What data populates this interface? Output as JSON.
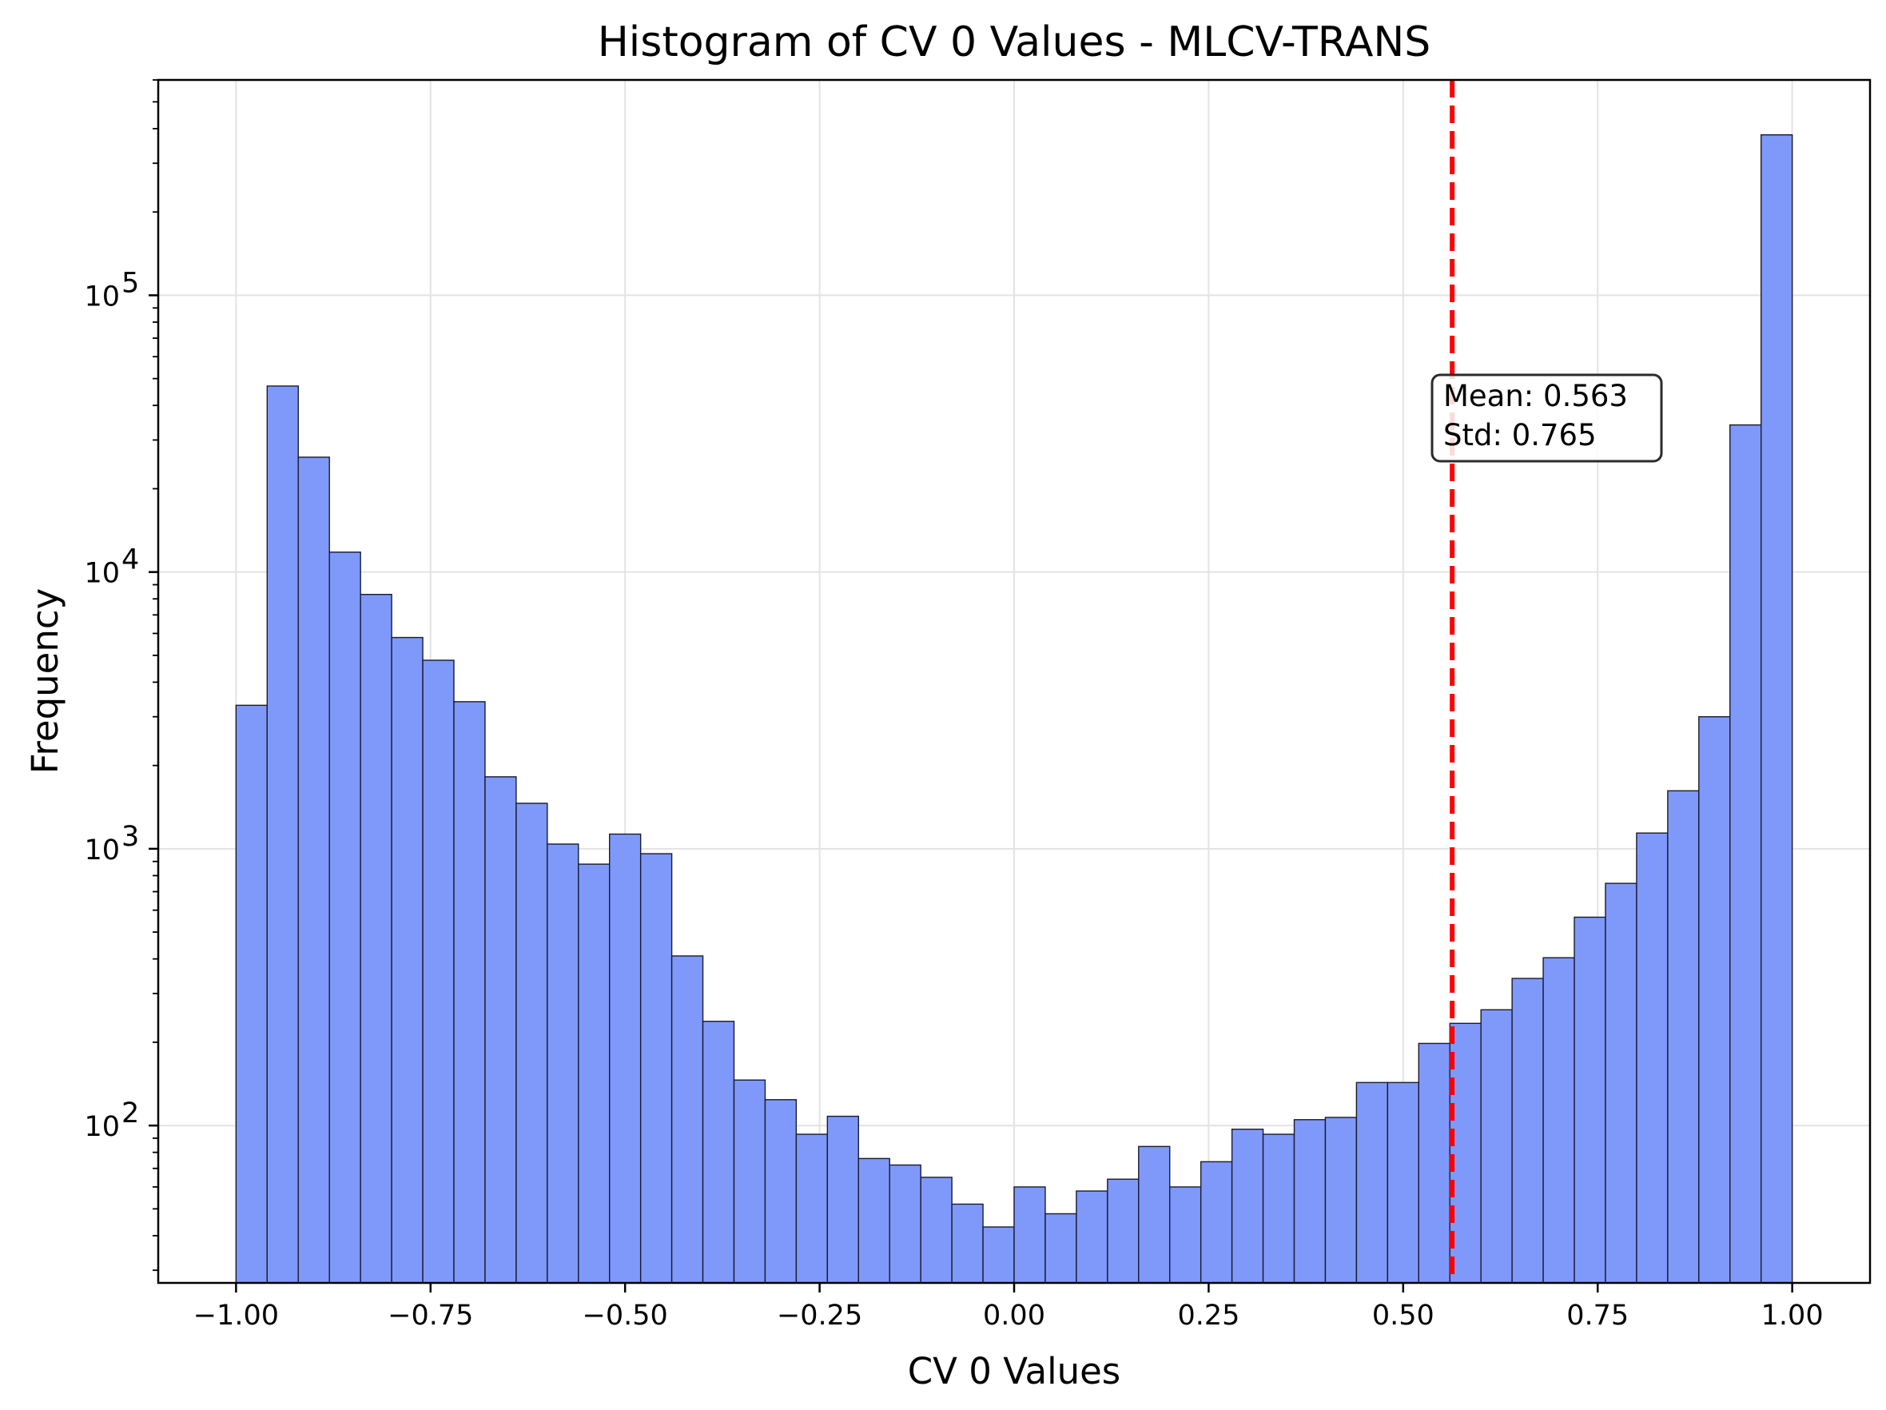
{
  "chart_data": {
    "type": "bar",
    "title": "Histogram of CV 0 Values - MLCV-TRANS",
    "xlabel": "CV 0 Values",
    "ylabel": "Frequency",
    "yscale": "log",
    "xlim": [
      -1.1,
      1.1
    ],
    "ylim": [
      27,
      600000
    ],
    "grid": true,
    "bar_color": "#7f99fb",
    "bar_edge_color": "#1a1a2e",
    "bin_start": -1.0,
    "bin_end": 1.0,
    "bin_count": 50,
    "values": [
      3300,
      47000,
      26000,
      11800,
      8300,
      5800,
      4800,
      3400,
      1820,
      1460,
      1040,
      880,
      1130,
      960,
      410,
      238,
      146,
      124,
      93,
      108,
      76,
      72,
      65,
      52,
      43,
      60,
      48,
      58,
      64,
      84,
      60,
      74,
      97,
      93,
      105,
      107,
      143,
      143,
      198,
      234,
      262,
      340,
      404,
      566,
      750,
      1140,
      1620,
      3000,
      34000,
      380000
    ],
    "xticks": [
      -1.0,
      -0.75,
      -0.5,
      -0.25,
      0.0,
      0.25,
      0.5,
      0.75,
      1.0
    ],
    "xtick_labels": [
      "−1.00",
      "−0.75",
      "−0.50",
      "−0.25",
      "0.00",
      "0.25",
      "0.50",
      "0.75",
      "1.00"
    ],
    "yticks": [
      100,
      1000,
      10000,
      100000
    ],
    "ytick_bases": [
      "10",
      "10",
      "10",
      "10"
    ],
    "ytick_exponents": [
      "2",
      "3",
      "4",
      "5"
    ],
    "mean_line": {
      "x": 0.563,
      "color": "#ff0000",
      "style": "dashed"
    },
    "stats_box": {
      "mean_text": "Mean: 0.563",
      "std_text": "Std: 0.765"
    }
  }
}
